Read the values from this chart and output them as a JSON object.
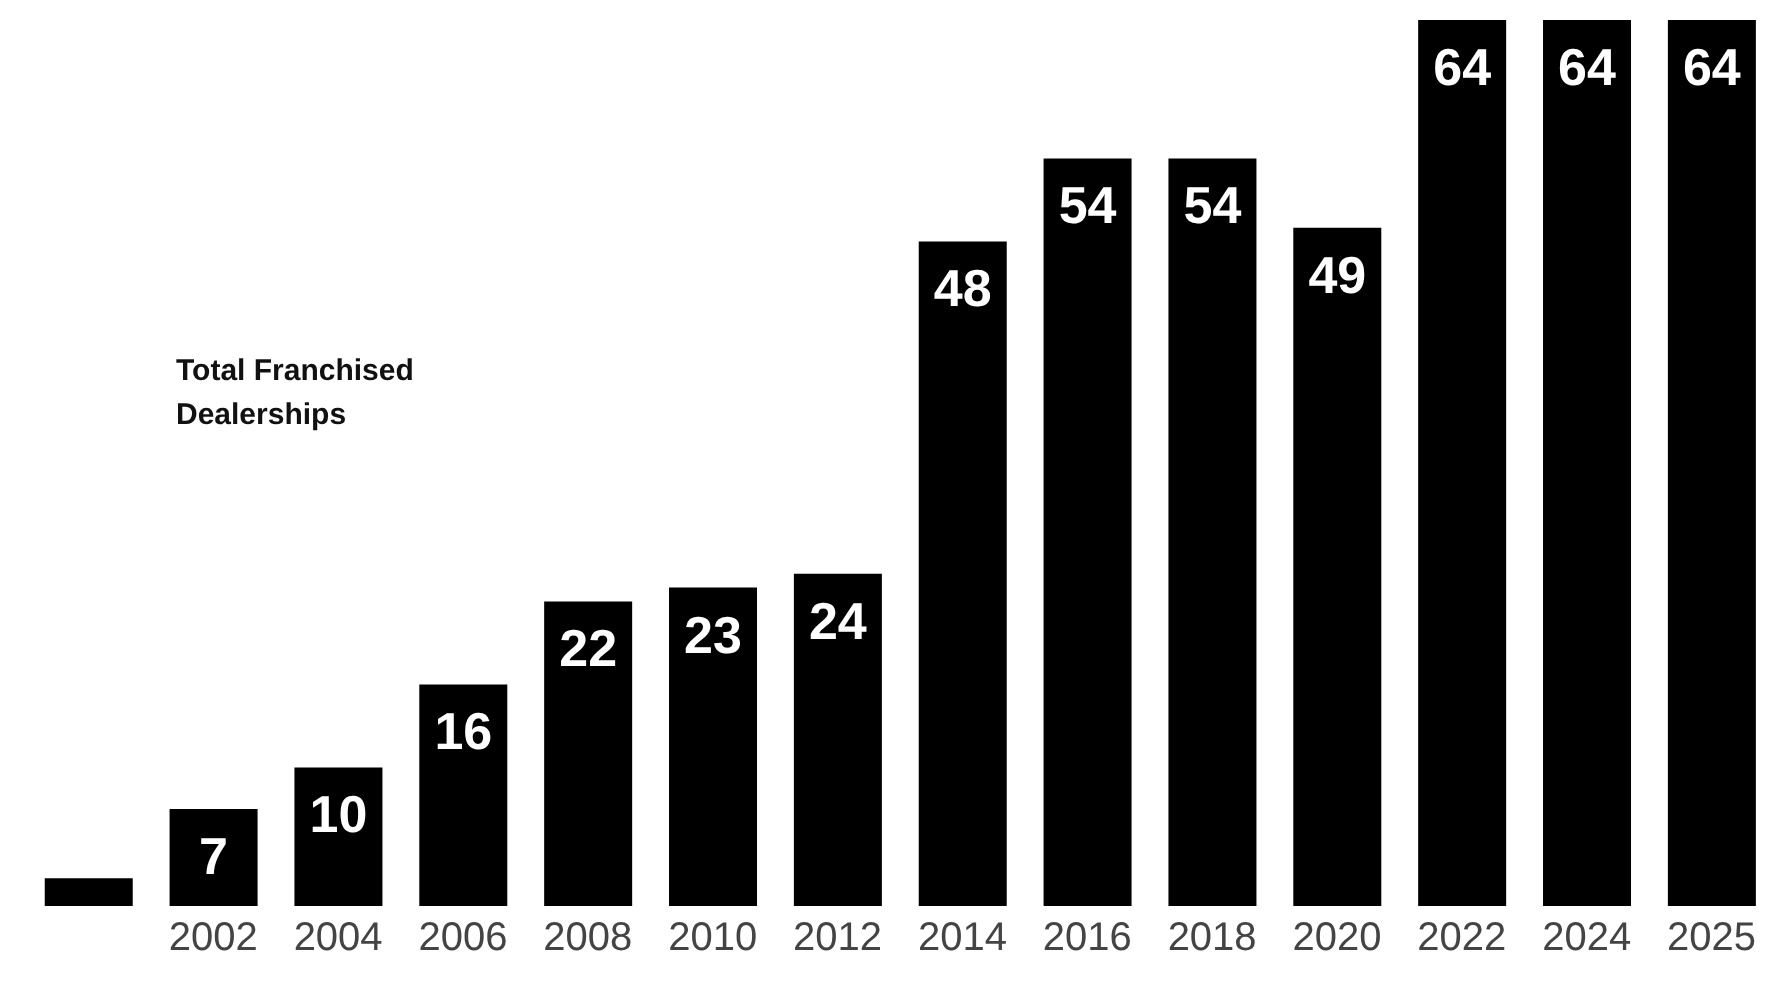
{
  "chart_data": {
    "type": "bar",
    "title": "Total Franchised Dealerships",
    "categories": [
      null,
      "2002",
      "2004",
      "2006",
      "2008",
      "2010",
      "2012",
      "2014",
      "2016",
      "2018",
      "2020",
      "2022",
      "2024",
      "2025"
    ],
    "values": [
      2,
      7,
      10,
      16,
      22,
      23,
      24,
      48,
      54,
      54,
      49,
      64,
      64,
      64
    ],
    "value_labels": [
      null,
      "7",
      "10",
      "16",
      "22",
      "23",
      "24",
      "48",
      "54",
      "54",
      "49",
      "64",
      "64",
      "64"
    ],
    "color": "#000000",
    "grid": false,
    "legend": false
  }
}
